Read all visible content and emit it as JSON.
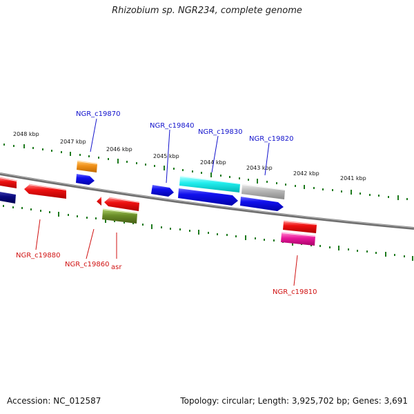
{
  "title": "Rhizobium sp. NGR234, complete genome",
  "footer": {
    "accession": "Accession: NC_012587",
    "summary": "Topology: circular; Length: 3,925,702 bp; Genes: 3,691"
  },
  "kbp_labels": [
    "2048 kbp",
    "2047 kbp",
    "2046 kbp",
    "2045 kbp",
    "2044 kbp",
    "2043 kbp",
    "2042 kbp",
    "2041 kbp"
  ],
  "gene_labels": {
    "ngr_c19870": "NGR_c19870",
    "ngr_c19840": "NGR_c19840",
    "ngr_c19830": "NGR_c19830",
    "ngr_c19820": "NGR_c19820",
    "ngr_c19880": "NGR_c19880",
    "ngr_c19860": "NGR_c19860",
    "asr": "asr",
    "ngr_c19810": "NGR_c19810"
  },
  "colors": {
    "backbone": "#808080",
    "tick": "#1e7a1e",
    "blue_label": "#1010cc",
    "red_label": "#d01010",
    "red_gene": "#ee1111",
    "blue_gene": "#1111ee",
    "navy_gene": "#0a0a80",
    "orange_gene": "#f09018",
    "cyan_gene": "#22eeee",
    "gray_gene": "#b8b8b8",
    "olive_gene": "#6a8e28",
    "magenta_gene": "#e8189a"
  }
}
